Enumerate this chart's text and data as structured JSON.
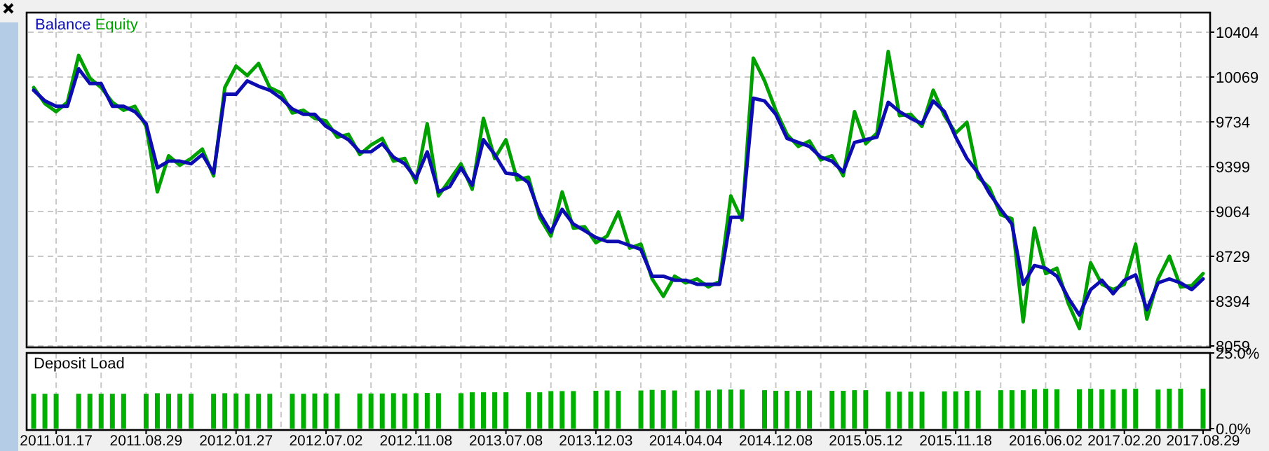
{
  "chart_data": [
    {
      "type": "line",
      "categories": [
        null,
        null,
        "2011.01.17",
        null,
        null,
        null,
        null,
        null,
        null,
        null,
        "2011.08.29",
        null,
        null,
        null,
        null,
        null,
        null,
        null,
        "2012.01.27",
        null,
        null,
        null,
        null,
        null,
        null,
        null,
        "2012.07.02",
        null,
        null,
        null,
        null,
        null,
        null,
        null,
        "2012.11.08",
        null,
        null,
        null,
        null,
        null,
        null,
        null,
        "2013.07.08",
        null,
        null,
        null,
        null,
        null,
        null,
        null,
        "2013.12.03",
        null,
        null,
        null,
        null,
        null,
        null,
        null,
        "2014.04.04",
        null,
        null,
        null,
        null,
        null,
        null,
        null,
        "2014.12.08",
        null,
        null,
        null,
        null,
        null,
        null,
        null,
        "2015.05.12",
        null,
        null,
        null,
        null,
        null,
        null,
        null,
        "2015.11.18",
        null,
        null,
        null,
        null,
        null,
        null,
        null,
        "2016.06.02",
        null,
        null,
        null,
        null,
        null,
        null,
        "2017.02.20",
        null,
        null,
        null,
        null,
        null,
        null,
        "2017.08.29"
      ],
      "series": [
        {
          "name": "Equity",
          "color": "#00a000",
          "values": [
            9990,
            9870,
            9810,
            9880,
            10230,
            10060,
            9990,
            9880,
            9820,
            9850,
            9700,
            9210,
            9480,
            9410,
            9460,
            9530,
            9330,
            9990,
            10150,
            10080,
            10170,
            9990,
            9950,
            9800,
            9820,
            9760,
            9740,
            9620,
            9640,
            9490,
            9560,
            9610,
            9440,
            9460,
            9280,
            9720,
            9180,
            9300,
            9420,
            9230,
            9760,
            9460,
            9600,
            9300,
            9320,
            9020,
            8880,
            9210,
            8940,
            8950,
            8830,
            8880,
            9060,
            8790,
            8820,
            8560,
            8430,
            8580,
            8530,
            8560,
            8500,
            8540,
            9180,
            9000,
            10210,
            10040,
            9820,
            9640,
            9550,
            9590,
            9450,
            9480,
            9330,
            9810,
            9570,
            9650,
            10260,
            9780,
            9790,
            9700,
            9970,
            9780,
            9650,
            9730,
            9320,
            9240,
            9040,
            9010,
            8240,
            8940,
            8600,
            8640,
            8380,
            8190,
            8680,
            8520,
            8480,
            8520,
            8820,
            8260,
            8560,
            8730,
            8500,
            8510,
            8600
          ]
        },
        {
          "name": "Balance",
          "color": "#0c0cb0",
          "values": [
            9970,
            9890,
            9850,
            9850,
            10130,
            10020,
            10020,
            9850,
            9850,
            9810,
            9720,
            9390,
            9440,
            9440,
            9420,
            9490,
            9350,
            9940,
            9940,
            10040,
            10000,
            9970,
            9910,
            9830,
            9790,
            9790,
            9700,
            9650,
            9600,
            9510,
            9510,
            9570,
            9470,
            9420,
            9310,
            9510,
            9210,
            9250,
            9390,
            9260,
            9600,
            9490,
            9350,
            9340,
            9280,
            9050,
            8910,
            9080,
            8970,
            8920,
            8870,
            8840,
            8840,
            8810,
            8780,
            8580,
            8580,
            8550,
            8550,
            8520,
            8520,
            8520,
            9020,
            9020,
            9910,
            9890,
            9790,
            9610,
            9580,
            9550,
            9470,
            9440,
            9360,
            9580,
            9600,
            9620,
            9880,
            9810,
            9760,
            9720,
            9890,
            9810,
            9620,
            9460,
            9350,
            9200,
            9080,
            8970,
            8520,
            8660,
            8640,
            8580,
            8420,
            8290,
            8480,
            8550,
            8450,
            8550,
            8590,
            8330,
            8530,
            8560,
            8530,
            8480,
            8560
          ]
        }
      ],
      "ylim": [
        8059,
        10550
      ],
      "yticks": [
        8059,
        8394,
        8729,
        9064,
        9399,
        9734,
        10069,
        10404
      ],
      "grid": true,
      "legend": "top left",
      "tick_labels": "y"
    },
    {
      "type": "bar",
      "title": "Deposit Load",
      "categories": [
        null,
        null,
        "2011.01.17",
        null,
        null,
        null,
        null,
        null,
        null,
        null,
        "2011.08.29",
        null,
        null,
        null,
        null,
        null,
        null,
        null,
        "2012.01.27",
        null,
        null,
        null,
        null,
        null,
        null,
        null,
        "2012.07.02",
        null,
        null,
        null,
        null,
        null,
        null,
        null,
        "2012.11.08",
        null,
        null,
        null,
        null,
        null,
        null,
        null,
        "2013.07.08",
        null,
        null,
        null,
        null,
        null,
        null,
        null,
        "2013.12.03",
        null,
        null,
        null,
        null,
        null,
        null,
        null,
        "2014.04.04",
        null,
        null,
        null,
        null,
        null,
        null,
        null,
        "2014.12.08",
        null,
        null,
        null,
        null,
        null,
        null,
        null,
        "2015.05.12",
        null,
        null,
        null,
        null,
        null,
        null,
        null,
        "2015.11.18",
        null,
        null,
        null,
        null,
        null,
        null,
        null,
        "2016.06.02",
        null,
        null,
        null,
        null,
        null,
        null,
        "2017.02.20",
        null,
        null,
        null,
        null,
        null,
        null,
        "2017.08.29"
      ],
      "color": "#00b000",
      "values": [
        11.5,
        11.5,
        11.5,
        null,
        11.5,
        11.5,
        11.5,
        11.5,
        11.5,
        null,
        11.5,
        11.7,
        11.5,
        11.5,
        11.5,
        null,
        11.5,
        11.7,
        11.6,
        11.5,
        11.5,
        11.5,
        null,
        11.5,
        11.5,
        11.6,
        11.6,
        11.6,
        null,
        11.6,
        11.6,
        11.6,
        11.7,
        11.6,
        11.7,
        11.8,
        11.7,
        null,
        11.7,
        12,
        12,
        12,
        12,
        null,
        12,
        12,
        12.4,
        12.4,
        12.4,
        null,
        12.5,
        12.6,
        12.5,
        null,
        12.6,
        12.8,
        12.7,
        12.6,
        null,
        12.6,
        12.6,
        12.9,
        12.9,
        12.9,
        null,
        12.7,
        12.5,
        12.5,
        12.5,
        12.6,
        null,
        12.5,
        12.5,
        12.7,
        12.7,
        null,
        12.2,
        12.2,
        12.2,
        12.2,
        null,
        12.3,
        12.3,
        12.5,
        12.6,
        null,
        12.7,
        12.7,
        12.7,
        13,
        13.2,
        13,
        null,
        13,
        13.2,
        13,
        12.9,
        13.1,
        13.2,
        null,
        12.9,
        13.2,
        13.2,
        null,
        13.2
      ],
      "ylim": [
        0,
        25
      ],
      "yticks": [
        {
          "value": 0,
          "label": "0.0%"
        },
        {
          "value": 25,
          "label": "25.0%"
        }
      ],
      "grid": "x"
    }
  ]
}
